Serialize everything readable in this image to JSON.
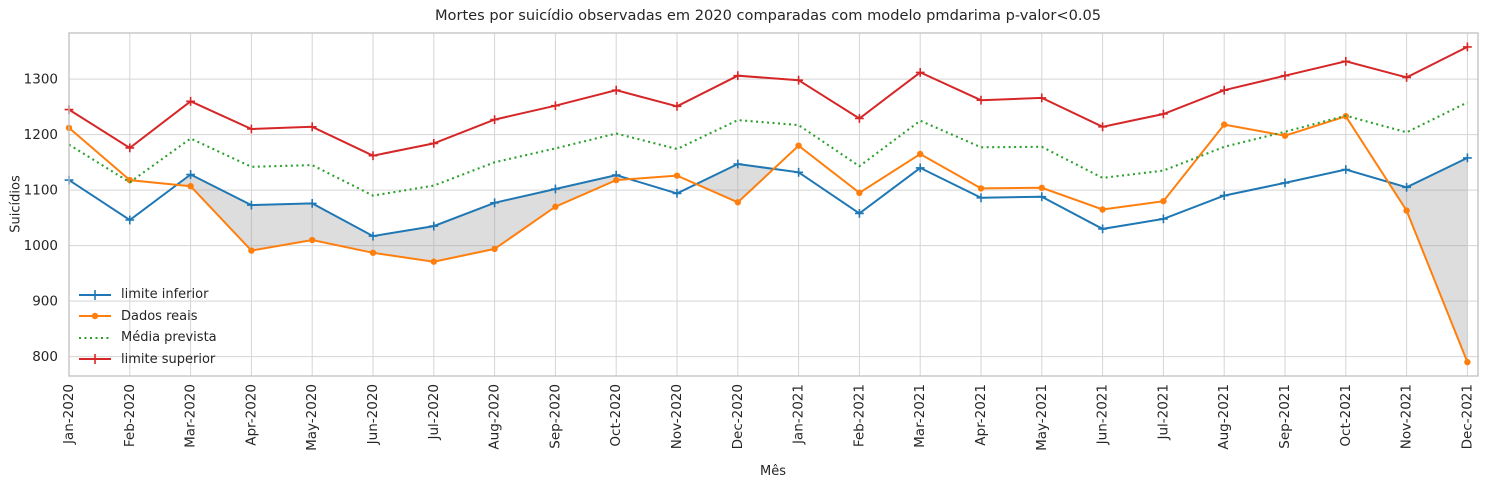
{
  "chart_data": {
    "type": "line",
    "title": "Mortes por suicídio observadas em 2020 comparadas com modelo pmdarima p-valor<0.05",
    "xlabel": "Mês",
    "ylabel": "Suicídios",
    "x": [
      "Jan-2020",
      "Feb-2020",
      "Mar-2020",
      "Apr-2020",
      "May-2020",
      "Jun-2020",
      "Jul-2020",
      "Aug-2020",
      "Sep-2020",
      "Oct-2020",
      "Nov-2020",
      "Dec-2020",
      "Jan-2021",
      "Feb-2021",
      "Mar-2021",
      "Apr-2021",
      "May-2021",
      "Jun-2021",
      "Jul-2021",
      "Aug-2021",
      "Sep-2021",
      "Oct-2021",
      "Nov-2021",
      "Dec-2021"
    ],
    "yticks": [
      800,
      900,
      1000,
      1100,
      1200,
      1300
    ],
    "ylim": [
      765,
      1383
    ],
    "grid": true,
    "legend_position": "center-left",
    "series": [
      {
        "name": "limite inferior",
        "color": "#1f77b4",
        "style": "solid",
        "marker": "plus",
        "values": [
          1118,
          1046,
          1128,
          1073,
          1076,
          1017,
          1035,
          1077,
          1102,
          1127,
          1094,
          1147,
          1132,
          1058,
          1140,
          1086,
          1088,
          1030,
          1048,
          1090,
          1113,
          1137,
          1105,
          1158
        ]
      },
      {
        "name": "Dados reais",
        "color": "#ff7f0e",
        "style": "solid",
        "marker": "circle",
        "values": [
          1212,
          1118,
          1107,
          991,
          1010,
          987,
          971,
          994,
          1070,
          1118,
          1126,
          1078,
          1180,
          1095,
          1165,
          1103,
          1104,
          1065,
          1080,
          1218,
          1198,
          1233,
          1063,
          790
        ]
      },
      {
        "name": "Média prevista",
        "color": "#2ca02c",
        "style": "dotted",
        "marker": "none",
        "values": [
          1182,
          1114,
          1193,
          1142,
          1145,
          1090,
          1108,
          1150,
          1175,
          1202,
          1174,
          1226,
          1217,
          1143,
          1225,
          1177,
          1178,
          1122,
          1135,
          1178,
          1205,
          1234,
          1204,
          1258
        ]
      },
      {
        "name": "limite superior",
        "color": "#d62728",
        "style": "solid",
        "marker": "plus",
        "values": [
          1245,
          1176,
          1260,
          1210,
          1214,
          1162,
          1184,
          1227,
          1252,
          1280,
          1251,
          1306,
          1298,
          1229,
          1312,
          1262,
          1266,
          1214,
          1237,
          1280,
          1306,
          1332,
          1303,
          1358
        ]
      }
    ],
    "fill_between": {
      "upper": "limite inferior",
      "lower": "Dados reais",
      "where": "Dados reais < limite inferior",
      "color": "#9e9e9e",
      "opacity": 0.35
    }
  },
  "colors": {
    "background": "#ffffff",
    "grid": "#d5d5d5",
    "spine": "#bfbfbf",
    "text": "#262626"
  }
}
